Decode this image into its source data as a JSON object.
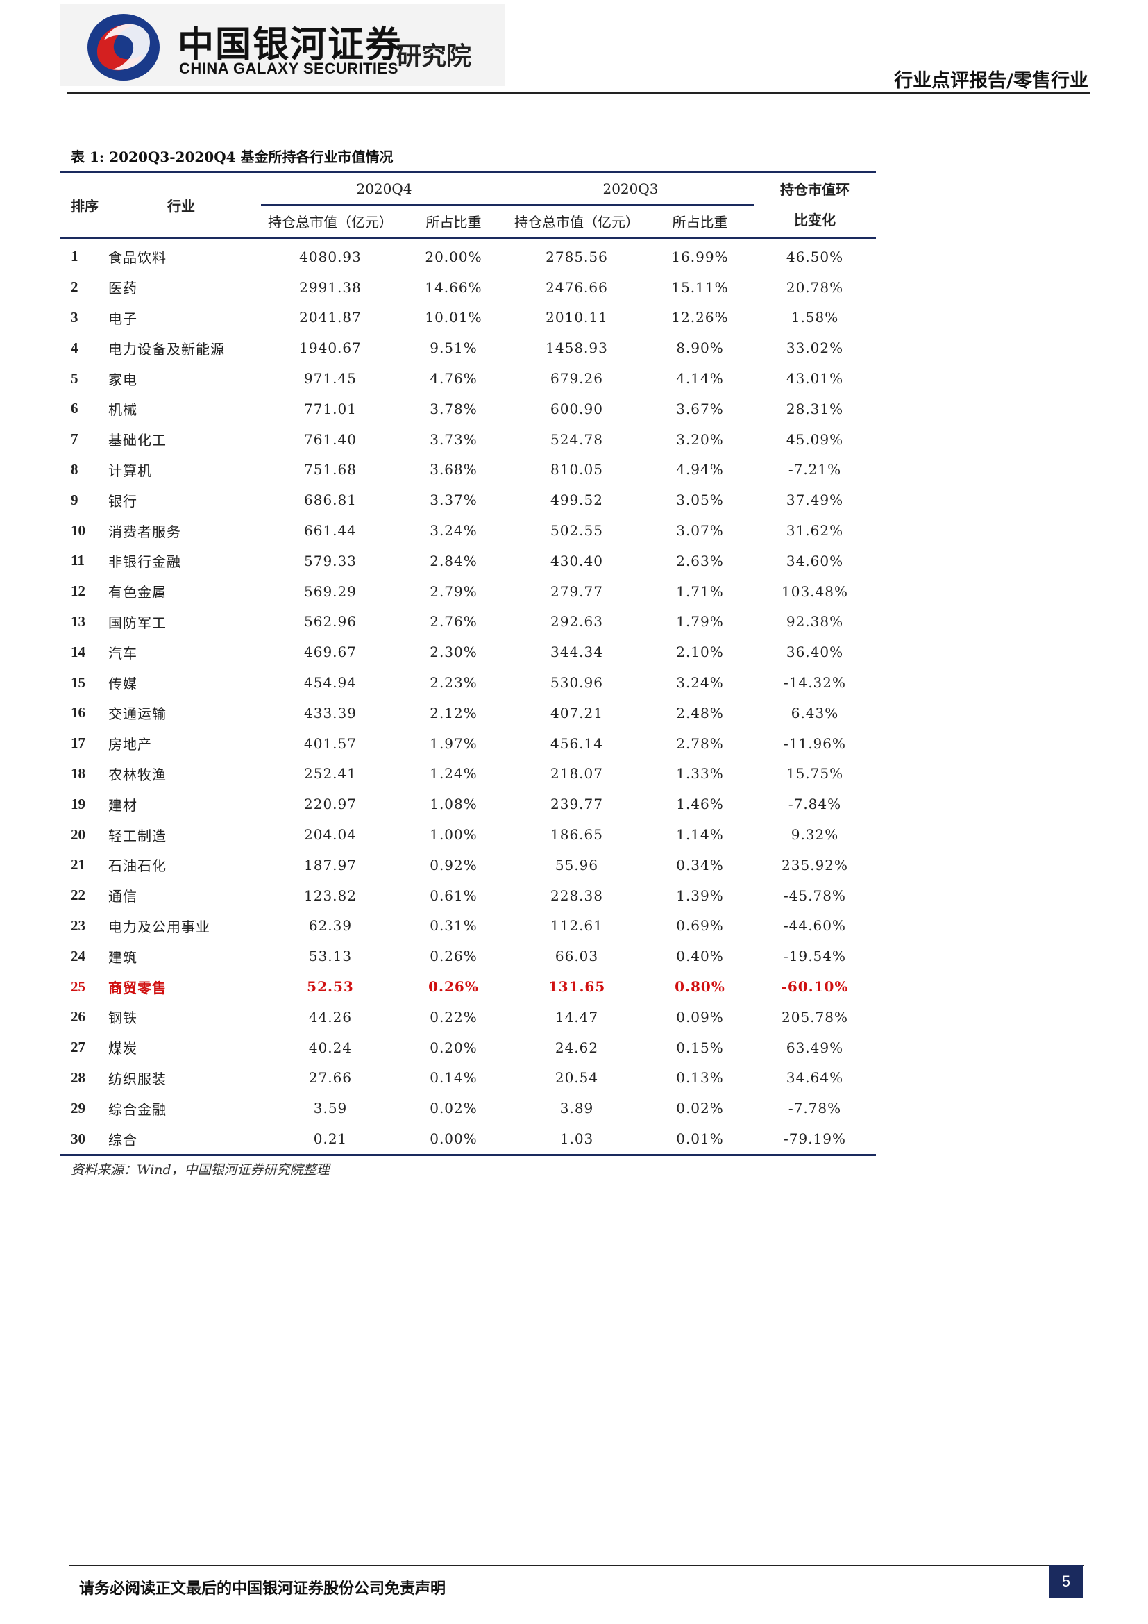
{
  "header": {
    "logo_cn": "中国银河证券",
    "logo_en": "CHINA GALAXY SECURITIES",
    "institute": "研究院",
    "report_type": "行业点评报告/零售行业"
  },
  "table": {
    "caption": "表 1:  2020Q3-2020Q4 基金所持各行业市值情况",
    "headers": {
      "rank": "排序",
      "industry": "行业",
      "q4": "2020Q4",
      "q3": "2020Q3",
      "change": "持仓市值环比变化",
      "market_value": "持仓总市值（亿元）",
      "weight": "所占比重"
    },
    "rows": [
      {
        "rank": "1",
        "industry": "食品饮料",
        "q4_value": "4080.93",
        "q4_weight": "20.00%",
        "q3_value": "2785.56",
        "q3_weight": "16.99%",
        "change": "46.50%"
      },
      {
        "rank": "2",
        "industry": "医药",
        "q4_value": "2991.38",
        "q4_weight": "14.66%",
        "q3_value": "2476.66",
        "q3_weight": "15.11%",
        "change": "20.78%"
      },
      {
        "rank": "3",
        "industry": "电子",
        "q4_value": "2041.87",
        "q4_weight": "10.01%",
        "q3_value": "2010.11",
        "q3_weight": "12.26%",
        "change": "1.58%"
      },
      {
        "rank": "4",
        "industry": "电力设备及新能源",
        "q4_value": "1940.67",
        "q4_weight": "9.51%",
        "q3_value": "1458.93",
        "q3_weight": "8.90%",
        "change": "33.02%"
      },
      {
        "rank": "5",
        "industry": "家电",
        "q4_value": "971.45",
        "q4_weight": "4.76%",
        "q3_value": "679.26",
        "q3_weight": "4.14%",
        "change": "43.01%"
      },
      {
        "rank": "6",
        "industry": "机械",
        "q4_value": "771.01",
        "q4_weight": "3.78%",
        "q3_value": "600.90",
        "q3_weight": "3.67%",
        "change": "28.31%"
      },
      {
        "rank": "7",
        "industry": "基础化工",
        "q4_value": "761.40",
        "q4_weight": "3.73%",
        "q3_value": "524.78",
        "q3_weight": "3.20%",
        "change": "45.09%"
      },
      {
        "rank": "8",
        "industry": "计算机",
        "q4_value": "751.68",
        "q4_weight": "3.68%",
        "q3_value": "810.05",
        "q3_weight": "4.94%",
        "change": "-7.21%"
      },
      {
        "rank": "9",
        "industry": "银行",
        "q4_value": "686.81",
        "q4_weight": "3.37%",
        "q3_value": "499.52",
        "q3_weight": "3.05%",
        "change": "37.49%"
      },
      {
        "rank": "10",
        "industry": "消费者服务",
        "q4_value": "661.44",
        "q4_weight": "3.24%",
        "q3_value": "502.55",
        "q3_weight": "3.07%",
        "change": "31.62%"
      },
      {
        "rank": "11",
        "industry": "非银行金融",
        "q4_value": "579.33",
        "q4_weight": "2.84%",
        "q3_value": "430.40",
        "q3_weight": "2.63%",
        "change": "34.60%"
      },
      {
        "rank": "12",
        "industry": "有色金属",
        "q4_value": "569.29",
        "q4_weight": "2.79%",
        "q3_value": "279.77",
        "q3_weight": "1.71%",
        "change": "103.48%"
      },
      {
        "rank": "13",
        "industry": "国防军工",
        "q4_value": "562.96",
        "q4_weight": "2.76%",
        "q3_value": "292.63",
        "q3_weight": "1.79%",
        "change": "92.38%"
      },
      {
        "rank": "14",
        "industry": "汽车",
        "q4_value": "469.67",
        "q4_weight": "2.30%",
        "q3_value": "344.34",
        "q3_weight": "2.10%",
        "change": "36.40%"
      },
      {
        "rank": "15",
        "industry": "传媒",
        "q4_value": "454.94",
        "q4_weight": "2.23%",
        "q3_value": "530.96",
        "q3_weight": "3.24%",
        "change": "-14.32%"
      },
      {
        "rank": "16",
        "industry": "交通运输",
        "q4_value": "433.39",
        "q4_weight": "2.12%",
        "q3_value": "407.21",
        "q3_weight": "2.48%",
        "change": "6.43%"
      },
      {
        "rank": "17",
        "industry": "房地产",
        "q4_value": "401.57",
        "q4_weight": "1.97%",
        "q3_value": "456.14",
        "q3_weight": "2.78%",
        "change": "-11.96%"
      },
      {
        "rank": "18",
        "industry": "农林牧渔",
        "q4_value": "252.41",
        "q4_weight": "1.24%",
        "q3_value": "218.07",
        "q3_weight": "1.33%",
        "change": "15.75%"
      },
      {
        "rank": "19",
        "industry": "建材",
        "q4_value": "220.97",
        "q4_weight": "1.08%",
        "q3_value": "239.77",
        "q3_weight": "1.46%",
        "change": "-7.84%"
      },
      {
        "rank": "20",
        "industry": "轻工制造",
        "q4_value": "204.04",
        "q4_weight": "1.00%",
        "q3_value": "186.65",
        "q3_weight": "1.14%",
        "change": "9.32%"
      },
      {
        "rank": "21",
        "industry": "石油石化",
        "q4_value": "187.97",
        "q4_weight": "0.92%",
        "q3_value": "55.96",
        "q3_weight": "0.34%",
        "change": "235.92%"
      },
      {
        "rank": "22",
        "industry": "通信",
        "q4_value": "123.82",
        "q4_weight": "0.61%",
        "q3_value": "228.38",
        "q3_weight": "1.39%",
        "change": "-45.78%"
      },
      {
        "rank": "23",
        "industry": "电力及公用事业",
        "q4_value": "62.39",
        "q4_weight": "0.31%",
        "q3_value": "112.61",
        "q3_weight": "0.69%",
        "change": "-44.60%"
      },
      {
        "rank": "24",
        "industry": "建筑",
        "q4_value": "53.13",
        "q4_weight": "0.26%",
        "q3_value": "66.03",
        "q3_weight": "0.40%",
        "change": "-19.54%"
      },
      {
        "rank": "25",
        "industry": "商贸零售",
        "q4_value": "52.53",
        "q4_weight": "0.26%",
        "q3_value": "131.65",
        "q3_weight": "0.80%",
        "change": "-60.10%",
        "highlight": true
      },
      {
        "rank": "26",
        "industry": "钢铁",
        "q4_value": "44.26",
        "q4_weight": "0.22%",
        "q3_value": "14.47",
        "q3_weight": "0.09%",
        "change": "205.78%"
      },
      {
        "rank": "27",
        "industry": "煤炭",
        "q4_value": "40.24",
        "q4_weight": "0.20%",
        "q3_value": "24.62",
        "q3_weight": "0.15%",
        "change": "63.49%"
      },
      {
        "rank": "28",
        "industry": "纺织服装",
        "q4_value": "27.66",
        "q4_weight": "0.14%",
        "q3_value": "20.54",
        "q3_weight": "0.13%",
        "change": "34.64%"
      },
      {
        "rank": "29",
        "industry": "综合金融",
        "q4_value": "3.59",
        "q4_weight": "0.02%",
        "q3_value": "3.89",
        "q3_weight": "0.02%",
        "change": "-7.78%"
      },
      {
        "rank": "30",
        "industry": "综合",
        "q4_value": "0.21",
        "q4_weight": "0.00%",
        "q3_value": "1.03",
        "q3_weight": "0.01%",
        "change": "-79.19%"
      }
    ],
    "source": "资料来源：Wind，中国银河证券研究院整理",
    "highlight_color": "#d01010",
    "rule_color": "#1a2a5e"
  },
  "footer": {
    "disclaimer": "请务必阅读正文最后的中国银河证券股份公司免责声明",
    "page_number": "5"
  }
}
